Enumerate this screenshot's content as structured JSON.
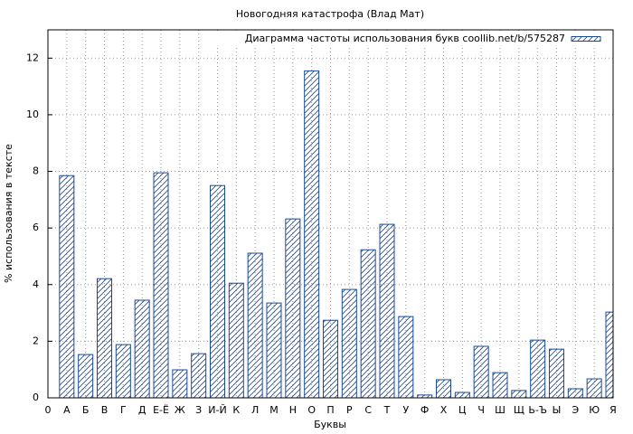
{
  "chart_data": {
    "type": "bar",
    "title": "Новогодняя катастрофа (Влад Мат)",
    "x_label": "Буквы",
    "y_label": "% использования в тексте",
    "categories": [
      "0",
      "А",
      "Б",
      "В",
      "Г",
      "Д",
      "Е-Ё",
      "Ж",
      "З",
      "И-Й",
      "К",
      "Л",
      "М",
      "Н",
      "О",
      "П",
      "Р",
      "С",
      "Т",
      "У",
      "Ф",
      "Х",
      "Ц",
      "Ч",
      "Ш",
      "Щ",
      "Ь-Ъ",
      "Ы",
      "Э",
      "Ю",
      "Я"
    ],
    "series": [
      {
        "name": "Диаграмма частоты использования букв coollib.net/b/575287",
        "color": "#1a4a9c",
        "values": [
          null,
          7.85,
          1.53,
          4.21,
          1.88,
          3.45,
          7.95,
          0.99,
          1.56,
          7.5,
          4.05,
          5.11,
          3.35,
          6.32,
          11.55,
          2.74,
          3.83,
          5.23,
          6.13,
          2.87,
          0.1,
          0.64,
          0.19,
          1.82,
          0.89,
          0.26,
          2.04,
          1.72,
          0.32,
          0.67,
          3.03
        ]
      }
    ],
    "ylim": [
      0,
      13
    ],
    "yticks": [
      0,
      2,
      4,
      6,
      8,
      10,
      12
    ],
    "grid": true,
    "legend": "top-right"
  }
}
